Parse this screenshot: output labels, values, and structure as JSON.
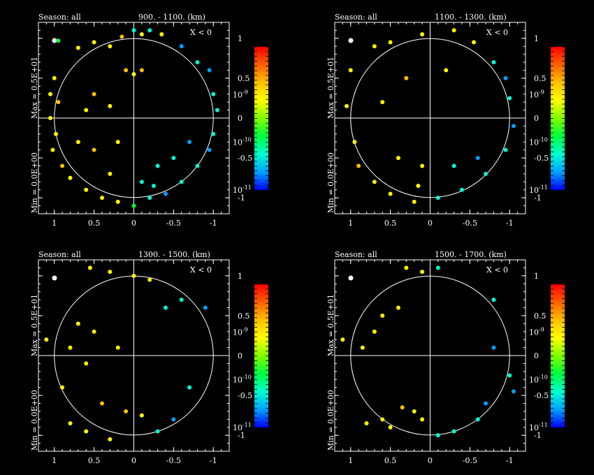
{
  "background": "#000000",
  "foreground": "#ffffff",
  "chart_data": [
    {
      "type": "scatter",
      "season_label": "Season: all",
      "range_label": "900. -  1100. (km)",
      "condition_label": "X < 0",
      "max_label": "Max = 0.5E+01",
      "min_label": "Min = 0.0E+00",
      "x_ticks": [
        1,
        0.5,
        0,
        -0.5,
        -1
      ],
      "x_tick_labels": [
        "1",
        "0.5",
        "0",
        "-0.5",
        "-1"
      ],
      "y_ticks": [
        1,
        0.5,
        0,
        -0.5,
        -1
      ],
      "y_tick_labels": [
        "1",
        "0.5",
        "0",
        "-0.5",
        "-1"
      ],
      "xlim": [
        1.2,
        -1.2
      ],
      "ylim": [
        -1.2,
        1.2
      ],
      "unit_circle_radius": 1,
      "colorbar": {
        "scale": "log",
        "range": [
          1e-11,
          1e-08
        ],
        "ticks": [
          "10^-11",
          "10^-10",
          "10^-9"
        ]
      },
      "points": [
        [
          0.95,
          0.97,
          1e-10
        ],
        [
          0.7,
          0.88,
          6e-10
        ],
        [
          0.5,
          0.95,
          8e-10
        ],
        [
          0.3,
          0.9,
          7e-10
        ],
        [
          0.15,
          1.02,
          1.2e-09
        ],
        [
          0.0,
          1.1,
          5e-11
        ],
        [
          -0.1,
          1.05,
          7e-10
        ],
        [
          -0.2,
          1.1,
          8e-11
        ],
        [
          -0.35,
          1.05,
          9e-10
        ],
        [
          -0.6,
          0.9,
          4e-11
        ],
        [
          -0.8,
          0.7,
          5e-11
        ],
        [
          -0.95,
          0.6,
          3e-11
        ],
        [
          1.0,
          0.5,
          7e-10
        ],
        [
          1.05,
          0.3,
          8e-10
        ],
        [
          0.95,
          0.2,
          1e-09
        ],
        [
          1.05,
          0.0,
          6e-10
        ],
        [
          0.98,
          -0.2,
          9e-10
        ],
        [
          1.02,
          -0.4,
          7e-10
        ],
        [
          0.9,
          -0.6,
          1e-09
        ],
        [
          0.8,
          -0.75,
          6e-10
        ],
        [
          0.6,
          -0.9,
          8e-10
        ],
        [
          0.4,
          -1.0,
          5e-10
        ],
        [
          0.2,
          -1.05,
          7e-10
        ],
        [
          0.0,
          -1.1,
          1e-10
        ],
        [
          -0.2,
          -1.0,
          5e-11
        ],
        [
          -0.4,
          -0.95,
          4e-11
        ],
        [
          -0.6,
          -0.8,
          6e-11
        ],
        [
          -0.8,
          -0.6,
          5e-11
        ],
        [
          -0.95,
          -0.4,
          4e-11
        ],
        [
          -1.0,
          -0.2,
          6e-11
        ],
        [
          -1.05,
          0.1,
          5e-11
        ],
        [
          -1.0,
          0.3,
          7e-11
        ],
        [
          0.6,
          0.1,
          8e-10
        ],
        [
          0.5,
          0.3,
          1e-09
        ],
        [
          0.3,
          0.15,
          9e-10
        ],
        [
          0.2,
          -0.3,
          7e-10
        ],
        [
          0.5,
          -0.4,
          1e-09
        ],
        [
          0.7,
          -0.3,
          8e-10
        ],
        [
          0.1,
          0.6,
          1e-09
        ],
        [
          0.0,
          0.55,
          8e-10
        ],
        [
          -0.1,
          0.6,
          1.1e-09
        ],
        [
          -0.3,
          -0.6,
          6e-11
        ],
        [
          -0.5,
          -0.5,
          5e-11
        ],
        [
          -0.7,
          -0.3,
          4e-11
        ],
        [
          0.3,
          -0.7,
          7e-10
        ],
        [
          -0.1,
          -0.8,
          5e-11
        ],
        [
          -0.25,
          -0.85,
          6e-11
        ]
      ]
    },
    {
      "type": "scatter",
      "season_label": "Season: all",
      "range_label": "1100. -  1300. (km)",
      "condition_label": "X < 0",
      "max_label": "Max = 0.5E+01",
      "min_label": "Min = 0.0E+00",
      "x_ticks": [
        1,
        0.5,
        0,
        -0.5,
        -1
      ],
      "x_tick_labels": [
        "1",
        "0.5",
        "0",
        "-0.5",
        "-1"
      ],
      "y_ticks": [
        1,
        0.5,
        0,
        -0.5,
        -1
      ],
      "y_tick_labels": [
        "1",
        "0.5",
        "0",
        "-0.5",
        "-1"
      ],
      "xlim": [
        1.2,
        -1.2
      ],
      "ylim": [
        -1.2,
        1.2
      ],
      "unit_circle_radius": 1,
      "colorbar": {
        "scale": "log",
        "range": [
          1e-11,
          1e-08
        ],
        "ticks": [
          "10^-11",
          "10^-10",
          "10^-9"
        ]
      },
      "points": [
        [
          0.7,
          0.9,
          7e-10
        ],
        [
          0.5,
          0.95,
          8e-10
        ],
        [
          0.1,
          1.05,
          6e-10
        ],
        [
          -0.3,
          1.1,
          9e-10
        ],
        [
          -0.55,
          0.95,
          7e-10
        ],
        [
          -0.8,
          0.7,
          5e-11
        ],
        [
          -0.95,
          0.5,
          4e-11
        ],
        [
          1.0,
          0.6,
          8e-10
        ],
        [
          1.05,
          0.15,
          9e-10
        ],
        [
          0.95,
          -0.3,
          7e-10
        ],
        [
          0.9,
          -0.6,
          1e-09
        ],
        [
          0.7,
          -0.8,
          8e-10
        ],
        [
          0.5,
          -0.95,
          9e-10
        ],
        [
          0.2,
          -1.05,
          6e-10
        ],
        [
          -0.1,
          -1.0,
          5e-11
        ],
        [
          -0.4,
          -0.9,
          5e-11
        ],
        [
          -0.7,
          -0.7,
          6e-11
        ],
        [
          -0.95,
          -0.4,
          5e-11
        ],
        [
          -1.05,
          -0.1,
          4e-11
        ],
        [
          -1.0,
          0.25,
          5e-11
        ],
        [
          0.6,
          0.2,
          9e-10
        ],
        [
          0.3,
          0.5,
          1e-09
        ],
        [
          -0.2,
          0.6,
          8e-10
        ],
        [
          0.4,
          -0.5,
          7e-10
        ],
        [
          0.1,
          -0.6,
          8e-10
        ],
        [
          -0.3,
          -0.6,
          5e-11
        ],
        [
          -0.6,
          -0.5,
          4e-11
        ],
        [
          0.15,
          -0.85,
          7e-10
        ]
      ]
    },
    {
      "type": "scatter",
      "season_label": "Season: all",
      "range_label": "1300. -  1500. (km)",
      "condition_label": "X < 0",
      "max_label": "Max = 0.5E+01",
      "min_label": "Min = 0.0E+00",
      "x_ticks": [
        1,
        0.5,
        0,
        -0.5,
        -1
      ],
      "x_tick_labels": [
        "1",
        "0.5",
        "0",
        "-0.5",
        "-1"
      ],
      "y_ticks": [
        1,
        0.5,
        0,
        -0.5,
        -1
      ],
      "y_tick_labels": [
        "1",
        "0.5",
        "0",
        "-0.5",
        "-1"
      ],
      "xlim": [
        1.2,
        -1.2
      ],
      "ylim": [
        -1.2,
        1.2
      ],
      "unit_circle_radius": 1,
      "colorbar": {
        "scale": "log",
        "range": [
          1e-11,
          1e-08
        ],
        "ticks": [
          "10^-11",
          "10^-10",
          "10^-9"
        ]
      },
      "points": [
        [
          0.55,
          1.1,
          8e-10
        ],
        [
          0.3,
          1.05,
          7e-10
        ],
        [
          0.0,
          1.0,
          9e-10
        ],
        [
          -0.2,
          0.95,
          6e-10
        ],
        [
          -0.6,
          0.7,
          5e-11
        ],
        [
          -0.9,
          0.6,
          4e-11
        ],
        [
          1.1,
          0.2,
          8e-10
        ],
        [
          0.8,
          0.1,
          9e-10
        ],
        [
          0.9,
          -0.4,
          7e-10
        ],
        [
          0.8,
          -0.85,
          9e-10
        ],
        [
          0.6,
          -0.95,
          8e-10
        ],
        [
          0.3,
          -1.05,
          6e-10
        ],
        [
          0.1,
          -0.7,
          1e-09
        ],
        [
          -0.1,
          -0.75,
          8e-10
        ],
        [
          -0.3,
          -0.95,
          5e-11
        ],
        [
          -0.5,
          -0.8,
          4e-11
        ],
        [
          -0.7,
          -0.4,
          5e-11
        ],
        [
          0.5,
          0.3,
          7e-10
        ],
        [
          0.7,
          0.4,
          8e-10
        ],
        [
          0.6,
          -0.1,
          9e-10
        ],
        [
          0.2,
          0.1,
          7e-10
        ],
        [
          -0.4,
          0.6,
          5e-11
        ],
        [
          0.4,
          -0.6,
          1e-09
        ]
      ]
    },
    {
      "type": "scatter",
      "season_label": "Season: all",
      "range_label": "1500. -  1700. (km)",
      "condition_label": "X < 0",
      "max_label": "Max = 0.5E+01",
      "min_label": "Min = 0.0E+00",
      "x_ticks": [
        1,
        0.5,
        0,
        -0.5,
        -1
      ],
      "x_tick_labels": [
        "1",
        "0.5",
        "0",
        "-0.5",
        "-1"
      ],
      "y_ticks": [
        1,
        0.5,
        0,
        -0.5,
        -1
      ],
      "y_tick_labels": [
        "1",
        "0.5",
        "0",
        "-0.5",
        "-1"
      ],
      "xlim": [
        1.2,
        -1.2
      ],
      "ylim": [
        -1.2,
        1.2
      ],
      "unit_circle_radius": 1,
      "colorbar": {
        "scale": "log",
        "range": [
          1e-11,
          1e-08
        ],
        "ticks": [
          "10^-11",
          "10^-10",
          "10^-9"
        ]
      },
      "points": [
        [
          0.3,
          1.1,
          7e-10
        ],
        [
          0.1,
          1.05,
          6e-10
        ],
        [
          -0.1,
          1.1,
          8e-11
        ],
        [
          -0.8,
          0.7,
          5e-11
        ],
        [
          0.6,
          0.5,
          8e-10
        ],
        [
          0.4,
          0.6,
          6e-10
        ],
        [
          1.1,
          0.2,
          8e-10
        ],
        [
          0.85,
          0.1,
          9e-10
        ],
        [
          0.7,
          0.3,
          7e-10
        ],
        [
          -0.8,
          0.1,
          4e-11
        ],
        [
          -1.0,
          -0.25,
          5e-11
        ],
        [
          -1.05,
          -0.45,
          4e-11
        ],
        [
          0.8,
          -0.85,
          9e-10
        ],
        [
          0.6,
          -0.8,
          8e-10
        ],
        [
          0.35,
          -0.65,
          1e-09
        ],
        [
          0.1,
          -0.8,
          8e-10
        ],
        [
          -0.1,
          -1.0,
          5e-11
        ],
        [
          -0.3,
          -0.95,
          6e-11
        ],
        [
          -0.6,
          -0.8,
          5e-11
        ],
        [
          -0.7,
          -0.6,
          4e-11
        ],
        [
          0.5,
          -0.9,
          7e-10
        ],
        [
          0.2,
          -0.7,
          9e-10
        ]
      ]
    }
  ]
}
